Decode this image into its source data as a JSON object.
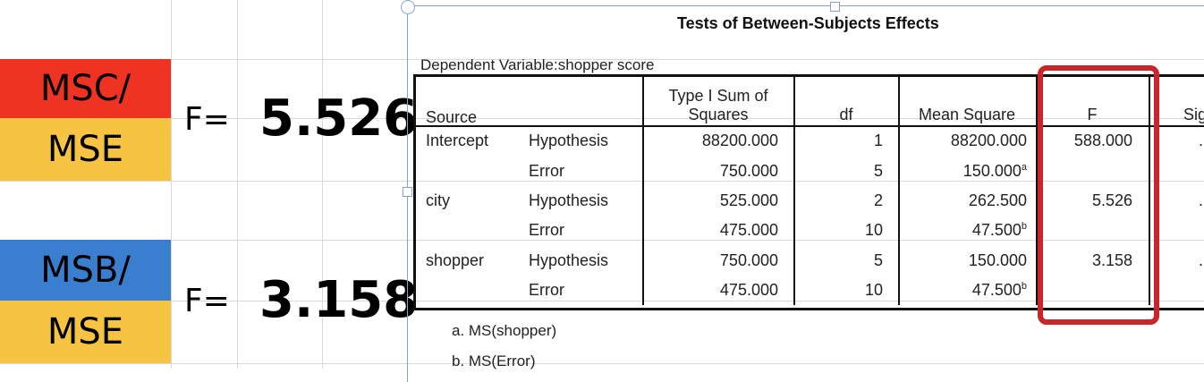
{
  "left_panel": {
    "msc_label": "MSC/",
    "mse_label_1": "MSE",
    "msb_label": "MSB/",
    "mse_label_2": "MSE",
    "f_eq_1": "F=",
    "f_val_1": "5.526",
    "f_eq_2": "F=",
    "f_val_2": "3.158",
    "colors": {
      "red": "#ee3322",
      "yellow": "#f6c343",
      "blue": "#3a7fcf"
    }
  },
  "spss_table": {
    "title": "Tests of Between-Subjects Effects",
    "dependent_variable": "Dependent Variable:shopper score",
    "headers": {
      "source": "Source",
      "ss_line1": "Type I Sum of",
      "ss_line2": "Squares",
      "df": "df",
      "ms": "Mean Square",
      "f": "F",
      "sig": "Sig"
    },
    "rows": [
      {
        "source": "Intercept",
        "type": "Hypothesis",
        "ss": "88200.000",
        "df": "1",
        "ms": "88200.000",
        "ms_sup": "",
        "f": "588.000",
        "sig": "."
      },
      {
        "source": "",
        "type": "Error",
        "ss": "750.000",
        "df": "5",
        "ms": "150.000",
        "ms_sup": "a",
        "f": "",
        "sig": ""
      },
      {
        "source": "city",
        "type": "Hypothesis",
        "ss": "525.000",
        "df": "2",
        "ms": "262.500",
        "ms_sup": "",
        "f": "5.526",
        "sig": "."
      },
      {
        "source": "",
        "type": "Error",
        "ss": "475.000",
        "df": "10",
        "ms": "47.500",
        "ms_sup": "b",
        "f": "",
        "sig": ""
      },
      {
        "source": "shopper",
        "type": "Hypothesis",
        "ss": "750.000",
        "df": "5",
        "ms": "150.000",
        "ms_sup": "",
        "f": "3.158",
        "sig": "."
      },
      {
        "source": "",
        "type": "Error",
        "ss": "475.000",
        "df": "10",
        "ms": "47.500",
        "ms_sup": "b",
        "f": "",
        "sig": ""
      }
    ],
    "footnotes": [
      "a. MS(shopper)",
      "b. MS(Error)"
    ],
    "highlight_color": "#c8262b"
  }
}
